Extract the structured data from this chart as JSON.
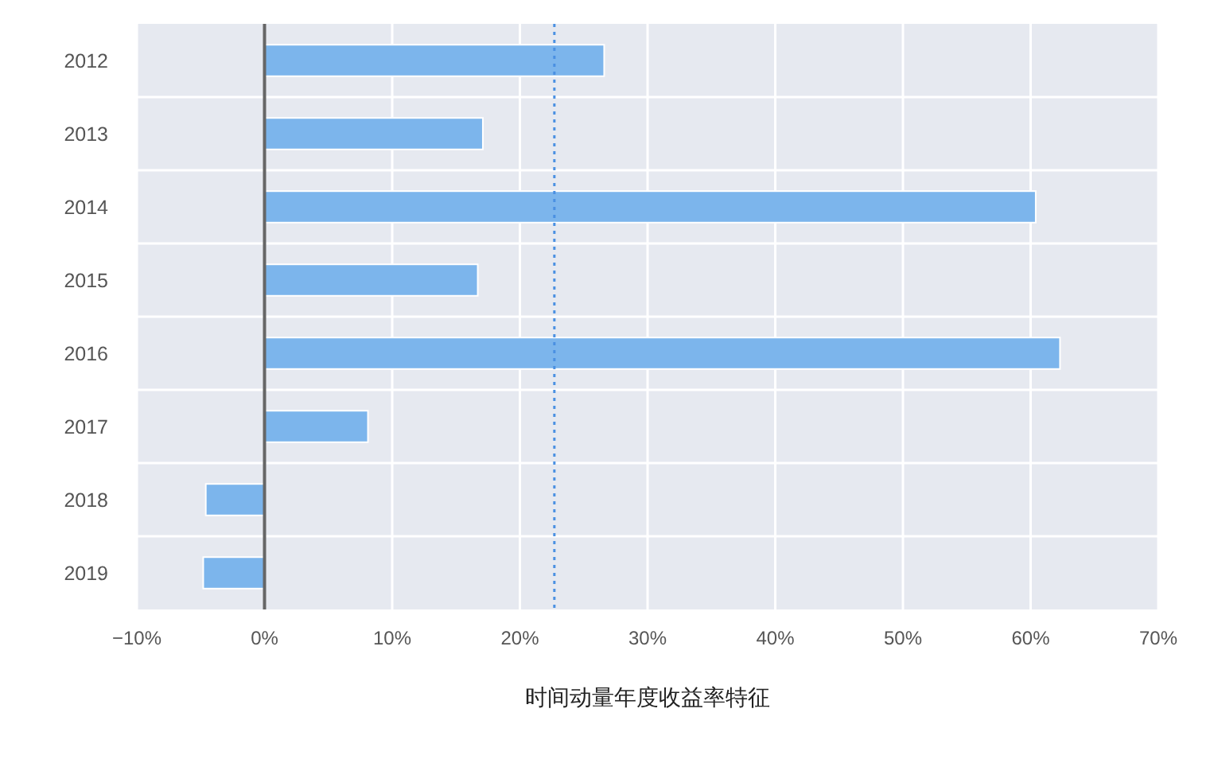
{
  "chart_data": {
    "type": "bar",
    "orientation": "horizontal",
    "title": "时间动量年度收益率特征",
    "categories": [
      "2012",
      "2013",
      "2014",
      "2015",
      "2016",
      "2017",
      "2018",
      "2019"
    ],
    "values": [
      26.6,
      17.1,
      60.4,
      16.7,
      62.3,
      8.1,
      -4.6,
      -4.8
    ],
    "color": "#7cb5ec",
    "xlim": [
      -10,
      70
    ],
    "xticks": [
      {
        "value": -10,
        "label": "−10%"
      },
      {
        "value": 0,
        "label": "0%"
      },
      {
        "value": 10,
        "label": "10%"
      },
      {
        "value": 20,
        "label": "20%"
      },
      {
        "value": 30,
        "label": "30%"
      },
      {
        "value": 40,
        "label": "40%"
      },
      {
        "value": 50,
        "label": "50%"
      },
      {
        "value": 60,
        "label": "60%"
      },
      {
        "value": 70,
        "label": "70%"
      }
    ],
    "ref_lines": [
      {
        "axis": "x",
        "value": 22.7,
        "color": "#4a90e2",
        "line_style": "dotted"
      }
    ],
    "grid": true
  }
}
